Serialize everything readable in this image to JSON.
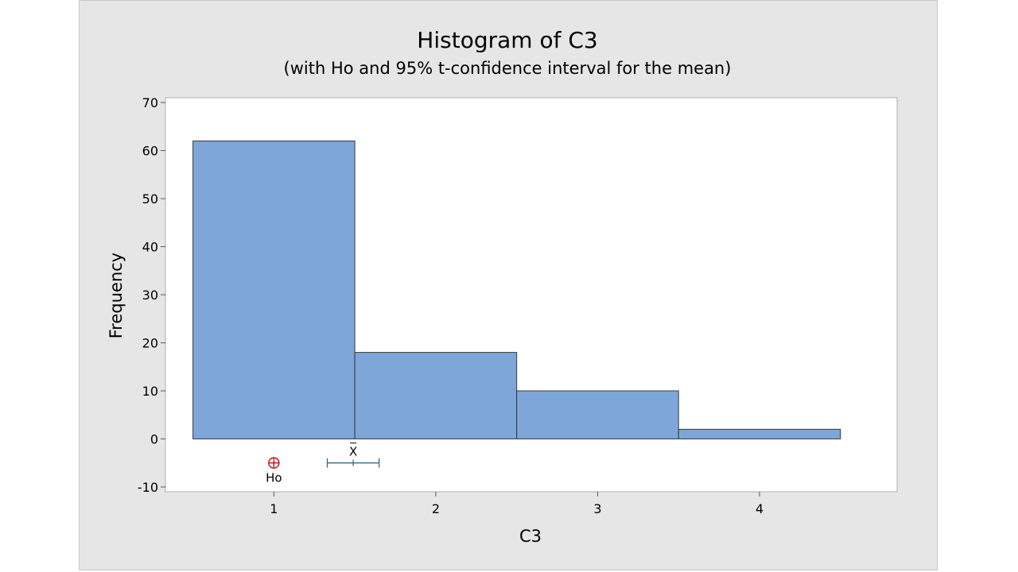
{
  "chart_data": {
    "type": "bar",
    "title": "Histogram of C3",
    "subtitle": "(with Ho and 95% t-confidence interval for the mean)",
    "xlabel": "C3",
    "ylabel": "Frequency",
    "bins": [
      {
        "center": 1,
        "low": 0.5,
        "high": 1.5,
        "count": 62
      },
      {
        "center": 2,
        "low": 1.5,
        "high": 2.5,
        "count": 18
      },
      {
        "center": 3,
        "low": 2.5,
        "high": 3.5,
        "count": 10
      },
      {
        "center": 4,
        "low": 3.5,
        "high": 4.5,
        "count": 2
      }
    ],
    "xticks": [
      1,
      2,
      3,
      4
    ],
    "yticks": [
      -10,
      0,
      10,
      20,
      30,
      40,
      50,
      60,
      70
    ],
    "xlim": [
      0.33,
      4.85
    ],
    "ylim": [
      -11,
      71
    ],
    "bar_color": "#7ea6d8",
    "ho": {
      "value": 1.0,
      "label": "Ho",
      "color": "#c00000"
    },
    "mean": {
      "value": 1.49,
      "ci_low": 1.33,
      "ci_high": 1.65,
      "label": "X",
      "color": "#2e6e7e"
    },
    "grid": false
  }
}
